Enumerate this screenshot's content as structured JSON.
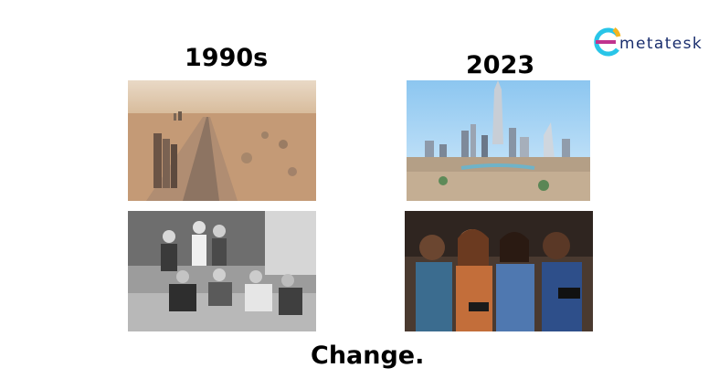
{
  "slide": {
    "left_heading": "1990s",
    "right_heading": "2023",
    "caption": "Change."
  },
  "logo": {
    "wordmark": "metatesk",
    "colors": {
      "ring_cyan": "#29c5e8",
      "ring_magenta": "#c0338e",
      "ring_yellow": "#f4b51f",
      "text": "#1b2f6e"
    }
  },
  "photos": [
    {
      "name": "desert-1990s-photo",
      "icon": "desert-highway-photo"
    },
    {
      "name": "city-2023-photo",
      "icon": "skyline-photo"
    },
    {
      "name": "kids-1990s-photo",
      "icon": "children-playing-photo"
    },
    {
      "name": "kids-2023-photo",
      "icon": "children-gaming-photo"
    }
  ]
}
